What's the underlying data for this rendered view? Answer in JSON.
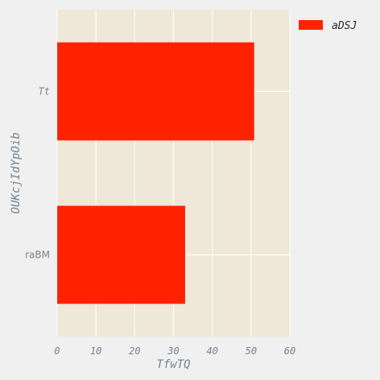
{
  "chart_data": {
    "type": "bar",
    "orientation": "horizontal",
    "categories": [
      "raBM",
      "Tt"
    ],
    "series": [
      {
        "name": "aDSJ",
        "values": [
          33,
          50.8
        ],
        "color": "#ff2200"
      }
    ],
    "xlabel": "TfwTQ",
    "ylabel": "OUKcjIdYpOib",
    "xlim": [
      0,
      60
    ],
    "xticks": [
      "0",
      "10",
      "20",
      "30",
      "40",
      "50",
      "60"
    ],
    "grid": true,
    "legend_position": "top-right",
    "colors": {
      "plot_background": "#efe8d8",
      "figure_background": "#f0f0f0",
      "grid": "#ffffff",
      "text": "#77838c"
    }
  }
}
